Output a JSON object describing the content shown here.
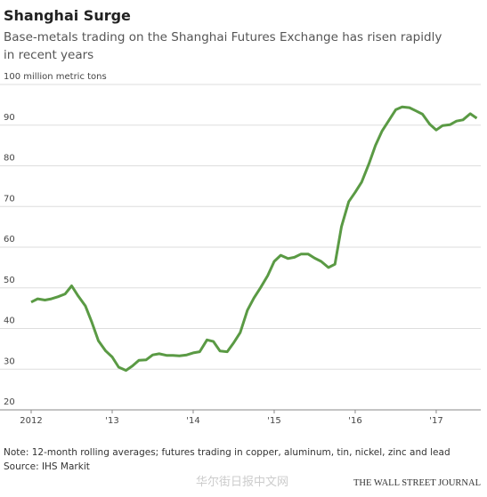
{
  "chart_data": {
    "type": "line",
    "title": "Shanghai Surge",
    "subtitle": "Base-metals trading on the Shanghai Futures Exchange has risen rapidly in recent years",
    "note": "Note: 12-month rolling averages; futures trading in copper, aluminum, tin, nickel, zinc and lead",
    "source": "Source: IHS Markit",
    "credit": "THE WALL STREET JOURNAL",
    "watermark": "华尔街日报中文网",
    "x": [
      2012.0,
      2012.08,
      2012.17,
      2012.25,
      2012.33,
      2012.42,
      2012.5,
      2012.58,
      2012.67,
      2012.75,
      2012.83,
      2012.92,
      2013.0,
      2013.08,
      2013.17,
      2013.25,
      2013.33,
      2013.42,
      2013.5,
      2013.58,
      2013.67,
      2013.75,
      2013.83,
      2013.92,
      2014.0,
      2014.08,
      2014.17,
      2014.25,
      2014.33,
      2014.42,
      2014.5,
      2014.58,
      2014.67,
      2014.75,
      2014.83,
      2014.92,
      2015.0,
      2015.08,
      2015.17,
      2015.25,
      2015.33,
      2015.42,
      2015.5,
      2015.58,
      2015.67,
      2015.75,
      2015.83,
      2015.92,
      2016.0,
      2016.08,
      2016.17,
      2016.25,
      2016.33,
      2016.42,
      2016.5,
      2016.58,
      2016.67,
      2016.75,
      2016.83,
      2016.92,
      2017.0,
      2017.08,
      2017.17,
      2017.25,
      2017.33,
      2017.42,
      2017.5
    ],
    "series": [
      {
        "name": "Base-metals trading",
        "color": "#5a9a44",
        "values": [
          46.5,
          47.3,
          47,
          47.3,
          47.8,
          48.5,
          50.5,
          48,
          45.5,
          41.5,
          37,
          34.5,
          33,
          30.5,
          29.7,
          30.8,
          32.2,
          32.3,
          33.5,
          33.8,
          33.4,
          33.4,
          33.3,
          33.5,
          34,
          34.3,
          37.2,
          36.8,
          34.5,
          34.3,
          36.5,
          39,
          44.5,
          47.5,
          50,
          53,
          56.5,
          58,
          57.2,
          57.5,
          58.3,
          58.3,
          57.3,
          56.5,
          55,
          55.8,
          65,
          71.2,
          73.5,
          76,
          80.5,
          85,
          88.5,
          91.3,
          93.8,
          94.5,
          94.3,
          93.5,
          92.7,
          90.2,
          88.8,
          89.9,
          90.1,
          91,
          91.3,
          92.8,
          91.7
        ]
      }
    ],
    "xlim": [
      2012,
      2017.55
    ],
    "xticks": [
      2012,
      {
        "value": 2013,
        "label": "'13"
      },
      {
        "value": 2014,
        "label": "'14"
      },
      {
        "value": 2015,
        "label": "'15"
      },
      {
        "value": 2016,
        "label": "'16"
      },
      {
        "value": 2017,
        "label": "'17"
      }
    ],
    "ylim": [
      20,
      100
    ],
    "yticks": [
      20,
      30,
      40,
      50,
      60,
      70,
      80,
      90,
      {
        "value": 100,
        "label": "100 million metric tons"
      }
    ],
    "grid": true
  }
}
